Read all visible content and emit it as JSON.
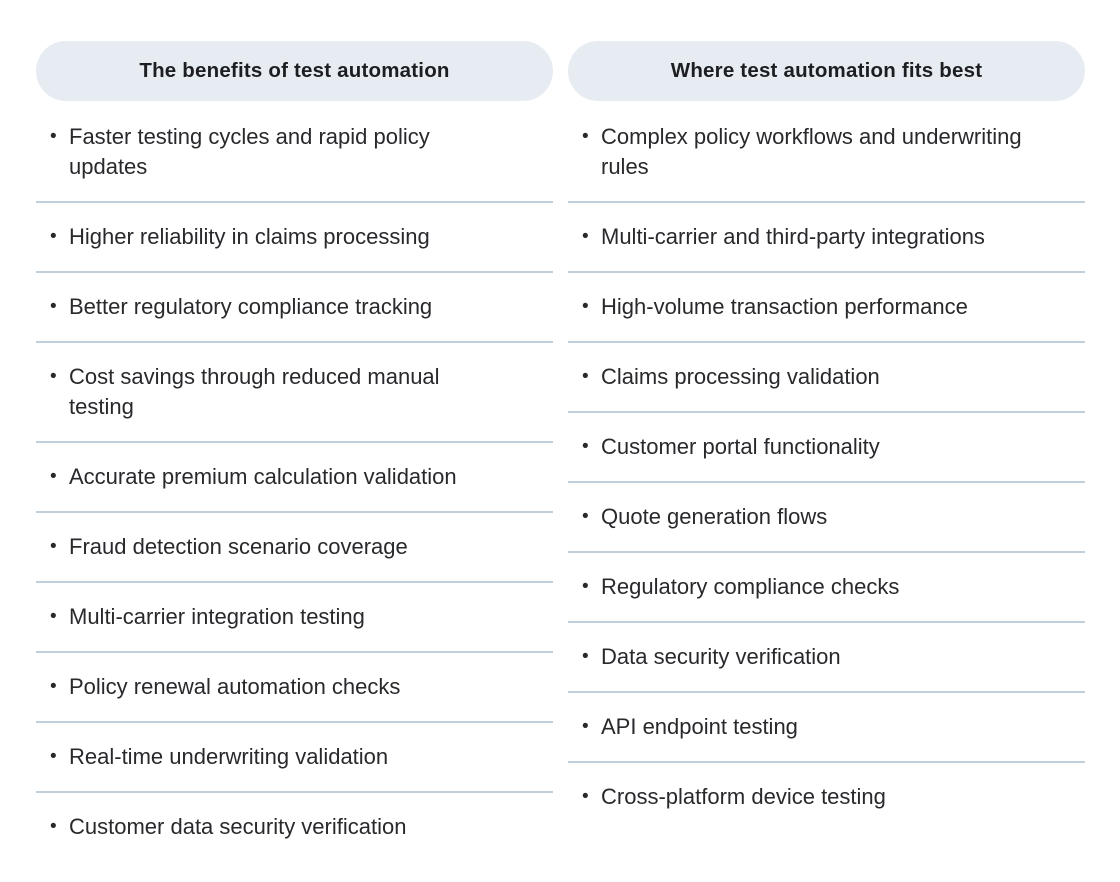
{
  "bullet_char": "•",
  "colors": {
    "page_bg": "#FFFFFF",
    "header_pill_bg": "#E7ECF2",
    "header_text": "#1D1E21",
    "divider": "#BFCFDC",
    "text": "#28292C"
  },
  "columns": [
    {
      "header": "The benefits of test automation",
      "items": [
        {
          "text": "Faster testing cycles and rapid policy updates"
        },
        {
          "text": "Higher reliability in claims processing"
        },
        {
          "text": "Better regulatory compliance tracking"
        },
        {
          "text": "Cost savings through reduced manual testing"
        },
        {
          "text": "Accurate premium calculation validation"
        },
        {
          "text": "Fraud detection scenario coverage"
        },
        {
          "text": "Multi-carrier integration testing"
        },
        {
          "text": "Policy renewal automation checks"
        },
        {
          "text": "Real-time underwriting validation"
        },
        {
          "text": "Customer data security verification"
        }
      ]
    },
    {
      "header": "Where test automation fits best",
      "items": [
        {
          "text": "Complex policy workflows and underwriting rules"
        },
        {
          "text": "Multi-carrier and third-party integrations"
        },
        {
          "text": "High-volume transaction performance"
        },
        {
          "text": "Claims processing validation"
        },
        {
          "text": "Customer portal functionality"
        },
        {
          "text": "Quote generation flows"
        },
        {
          "text": "Regulatory compliance checks"
        },
        {
          "text": "Data security verification"
        },
        {
          "text": "API endpoint testing"
        },
        {
          "text": "Cross-platform device testing"
        }
      ]
    }
  ]
}
